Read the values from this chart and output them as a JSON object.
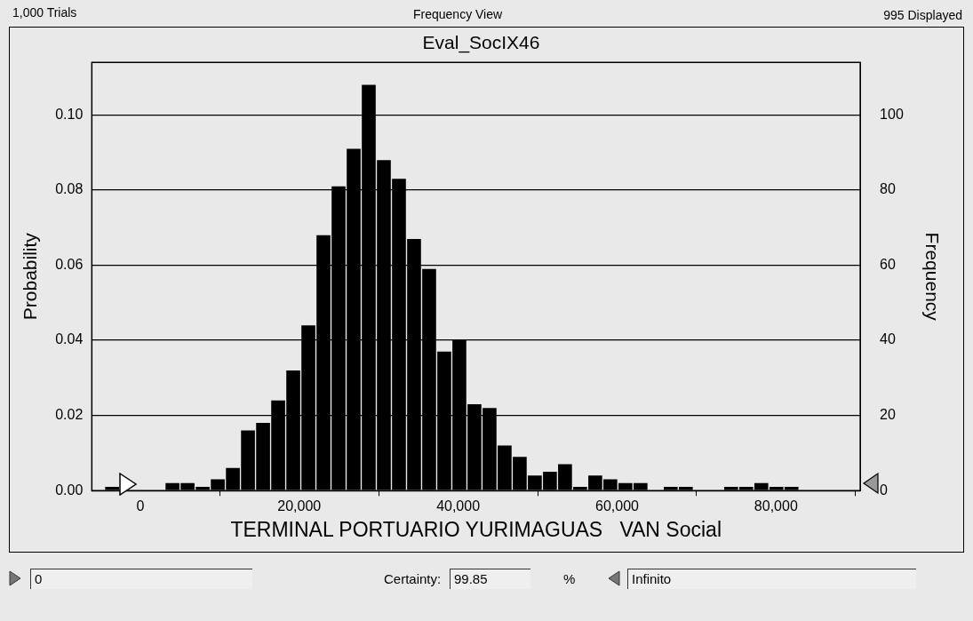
{
  "chart_data": {
    "type": "histogram",
    "title": "Eval_SocIX46",
    "xlabel": "TERMINAL PORTUARIO YURIMAGUAS   VAN Social",
    "ylabel": "Probability",
    "y2label": "Frequency",
    "bins": [
      -4500,
      -2600,
      -700,
      1200,
      3100,
      5000,
      6900,
      8800,
      10700,
      12600,
      14500,
      16400,
      18300,
      20200,
      22100,
      24000,
      25900,
      27800,
      29700,
      31600,
      33500,
      35400,
      37300,
      39200,
      41100,
      43000,
      44900,
      46800,
      48700,
      50600,
      52500,
      54400,
      56300,
      58200,
      60100,
      62000,
      63900,
      65800,
      67700,
      69600,
      71500,
      73400,
      75300,
      77200,
      79100,
      81000,
      82900
    ],
    "values": [
      0.001,
      0,
      0,
      0,
      0.002,
      0.002,
      0.001,
      0.003,
      0.006,
      0.016,
      0.018,
      0.024,
      0.032,
      0.044,
      0.068,
      0.081,
      0.091,
      0.108,
      0.088,
      0.083,
      0.067,
      0.059,
      0.037,
      0.04,
      0.023,
      0.022,
      0.012,
      0.009,
      0.004,
      0.005,
      0.007,
      0.001,
      0.004,
      0.003,
      0.002,
      0.002,
      0,
      0.001,
      0.001,
      0,
      0,
      0.001,
      0.001,
      0.002,
      0.001,
      0.001
    ],
    "color": "#000000",
    "xlim": [
      -6100,
      90600
    ],
    "xticks": [
      0,
      {
        "value": 20000,
        "label": "20,000"
      },
      {
        "value": 40000,
        "label": "40,000"
      },
      {
        "value": 60000,
        "label": "60,000"
      },
      {
        "value": 80000,
        "label": "80,000"
      }
    ],
    "ylim": [
      0,
      0.114
    ],
    "yticks": [
      {
        "value": 0,
        "label": "0.00"
      },
      {
        "value": 0.02,
        "label": "0.02"
      },
      {
        "value": 0.04,
        "label": "0.04"
      },
      {
        "value": 0.06,
        "label": "0.06"
      },
      {
        "value": 0.08,
        "label": "0.08"
      },
      {
        "value": 0.1,
        "label": "0.10"
      }
    ],
    "y2lim": [
      0,
      114
    ],
    "y2ticks": [
      0,
      20,
      40,
      60,
      80,
      100
    ],
    "grid": "y",
    "legend": false,
    "annotations": [
      "1,000 Trials",
      "Frequency View",
      "995 Displayed",
      "Certainty:",
      "0",
      "99.85",
      "%",
      "Infinito"
    ]
  }
}
